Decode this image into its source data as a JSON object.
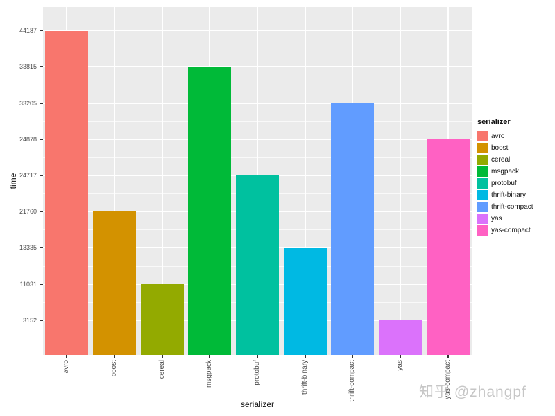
{
  "chart_data": {
    "type": "bar",
    "title": "",
    "xlabel": "serializer",
    "ylabel": "time",
    "categories": [
      "avro",
      "boost",
      "cereal",
      "msgpack",
      "protobuf",
      "thrift-binary",
      "thrift-compact",
      "yas",
      "yas-compact"
    ],
    "values": [
      44187,
      21760,
      11031,
      33815,
      24717,
      13335,
      33205,
      3152,
      24878
    ],
    "colors": {
      "avro": "#F8766D",
      "boost": "#D39200",
      "cereal": "#93AA00",
      "msgpack": "#00BA38",
      "protobuf": "#00C19F",
      "thrift-binary": "#00B9E3",
      "thrift-compact": "#619CFF",
      "yas": "#DB72FB",
      "yas-compact": "#FF61C3"
    },
    "y_ticks": [
      3152,
      11031,
      13335,
      21760,
      24717,
      24878,
      33205,
      33815,
      44187
    ],
    "y_tick_labels_top_to_bottom": [
      "44187",
      "33815",
      "33205",
      "24878",
      "24717",
      "21760",
      "13335",
      "11031",
      "3152"
    ],
    "y_axis_note": "ticks are the bar values themselves, evenly spaced (discrete-style axis); each bar top aligns with its tick",
    "grid": true,
    "panel_bg": "#EBEBEB",
    "gridline_color": "#FFFFFF",
    "legend": {
      "title": "serializer",
      "position": "right",
      "entries": [
        "avro",
        "boost",
        "cereal",
        "msgpack",
        "protobuf",
        "thrift-binary",
        "thrift-compact",
        "yas",
        "yas-compact"
      ]
    }
  },
  "watermark": {
    "text": "知乎 @zhangpf",
    "color": "#c6c6c6"
  }
}
